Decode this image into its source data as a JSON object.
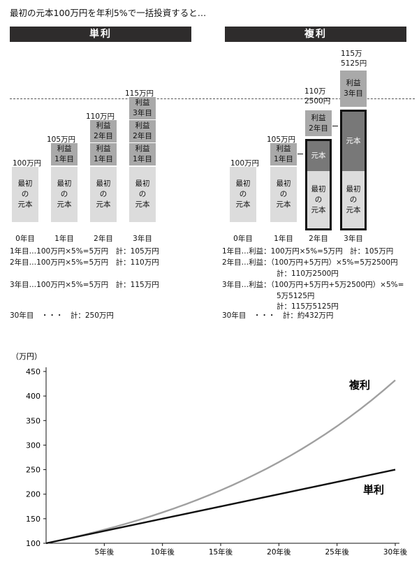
{
  "title": "最初の元本100万円を年利5%で一括投資すると…",
  "simple": {
    "header": "単利",
    "totals": [
      "100万円",
      "105万円",
      "110万円",
      "115万円"
    ],
    "years": [
      "0年目",
      "1年目",
      "2年目",
      "3年目"
    ],
    "principal": [
      "最初",
      "の",
      "元本"
    ],
    "interest_word": "利益",
    "interest_years": [
      "1年目",
      "2年目",
      "3年目"
    ],
    "calc": [
      "1年目…100万円×5%=5万円　計：105万円",
      "2年目…100万円×5%=5万円　計：110万円",
      "3年目…100万円×5%=5万円　計：115万円",
      "30年目　・・・　計：250万円"
    ]
  },
  "compound": {
    "header": "複利",
    "totals": [
      "100万円",
      "105万円",
      "110万\n2500円",
      "115万\n5125円"
    ],
    "years": [
      "0年目",
      "1年目",
      "2年目",
      "3年目"
    ],
    "principal": [
      "最初",
      "の",
      "元本"
    ],
    "principal_short": "元本",
    "interest_word": "利益",
    "interest_years": [
      "1年目",
      "2年目",
      "3年目"
    ],
    "calc": [
      "1年目…利益：100万円×5%=5万円　計：105万円",
      "2年目…利益：（100万円+5万円）×5%=5万2500円",
      "計：110万2500円",
      "3年目…利益：（100万円+5万円+5万2500円）×5%=",
      "5万5125円",
      "計：115万5125円",
      "30年目　・・・　計：約432万円"
    ]
  },
  "chart_data": {
    "type": "line",
    "ylabel": "（万円）",
    "ylim": [
      100,
      450
    ],
    "yticks": [
      100,
      150,
      200,
      250,
      300,
      350,
      400,
      450
    ],
    "xlim": [
      0,
      30
    ],
    "xticks": [
      5,
      10,
      15,
      20,
      25,
      30
    ],
    "xtick_labels": [
      "5年後",
      "10年後",
      "15年後",
      "20年後",
      "25年後",
      "30年後"
    ],
    "grid": false,
    "series": [
      {
        "name": "複利",
        "color": "#a0a0a0",
        "x": [
          0,
          1,
          2,
          3,
          4,
          5,
          6,
          7,
          8,
          9,
          10,
          11,
          12,
          13,
          14,
          15,
          16,
          17,
          18,
          19,
          20,
          21,
          22,
          23,
          24,
          25,
          26,
          27,
          28,
          29,
          30
        ],
        "values": [
          100,
          105,
          110.3,
          115.8,
          121.6,
          127.6,
          134,
          140.7,
          147.7,
          155.1,
          162.9,
          171,
          179.6,
          188.6,
          198,
          207.9,
          218.3,
          229.2,
          240.7,
          252.7,
          265.3,
          278.6,
          292.5,
          307.2,
          322.5,
          338.6,
          355.7,
          373.5,
          392.1,
          411.7,
          432.2
        ]
      },
      {
        "name": "単利",
        "color": "#111111",
        "x": [
          0,
          30
        ],
        "values": [
          100,
          250
        ]
      }
    ]
  }
}
